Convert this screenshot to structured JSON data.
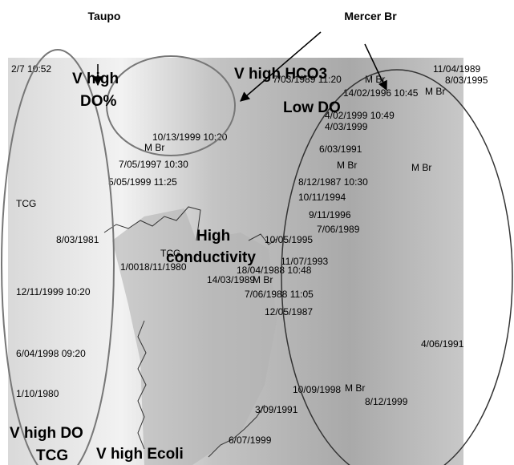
{
  "header": {
    "labels": [
      "Taupo",
      "Mercer Br"
    ]
  },
  "annotations": [
    "V high",
    "DO%",
    "V high HCO3",
    "Low DO",
    "High",
    "conductivity",
    "V high DO",
    "TCG",
    "V high Ecoli"
  ],
  "map_labels": [
    "2/7 10:52",
    "7/03/1989 11:20",
    "11/04/1989",
    "8/03/1995",
    "14/02/1996 10:45",
    "M Br",
    "M Br",
    "4/02/1999 10:49",
    "4/03/1999",
    "6/03/1991",
    "7/05/1997 10:30",
    "5/05/1999 11:25",
    "M Br",
    "8/12/1987 10:30",
    "10/11/1994",
    "9/11/1996",
    "7/06/1989",
    "M Br",
    "8/03/1981",
    "TCG",
    "1/0018/11/1980",
    "10/05/1995",
    "18/04/1988 10:48",
    "14/03/1989",
    "M Br",
    "7/06/1988 11:05",
    "12/05/1987",
    "4/06/1991",
    "M Br",
    "10/09/1998",
    "6/07/1999",
    "3/09/1991",
    "1/10/1980",
    "8/12/1999",
    "M Br",
    "6/04/1998 09:20",
    "10/13/1999 10:20",
    "11/07/1993",
    "12/11/1999 10:20",
    "TCG"
  ]
}
